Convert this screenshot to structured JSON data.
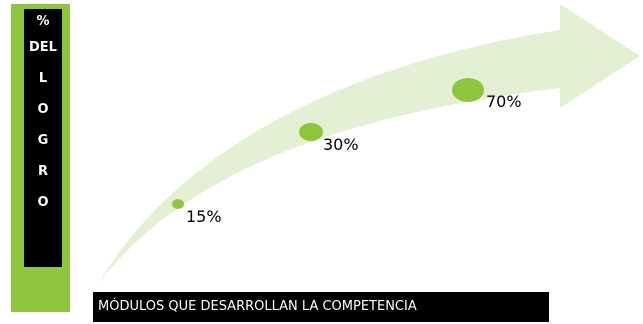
{
  "y_axis_label": {
    "lines": [
      "%",
      "DEL",
      "L",
      "O",
      "G",
      "R",
      "O"
    ]
  },
  "x_axis_label": "MÓDULOS QUE DESARROLLAN LA COMPETENCIA",
  "milestones": [
    {
      "label": "15%",
      "value": 15
    },
    {
      "label": "30%",
      "value": 30
    },
    {
      "label": "70%",
      "value": 70
    }
  ],
  "colors": {
    "arrow": "#e3f0d3",
    "dot": "#8dc53d",
    "bar": "#8dc53d",
    "label_box": "#000000"
  }
}
